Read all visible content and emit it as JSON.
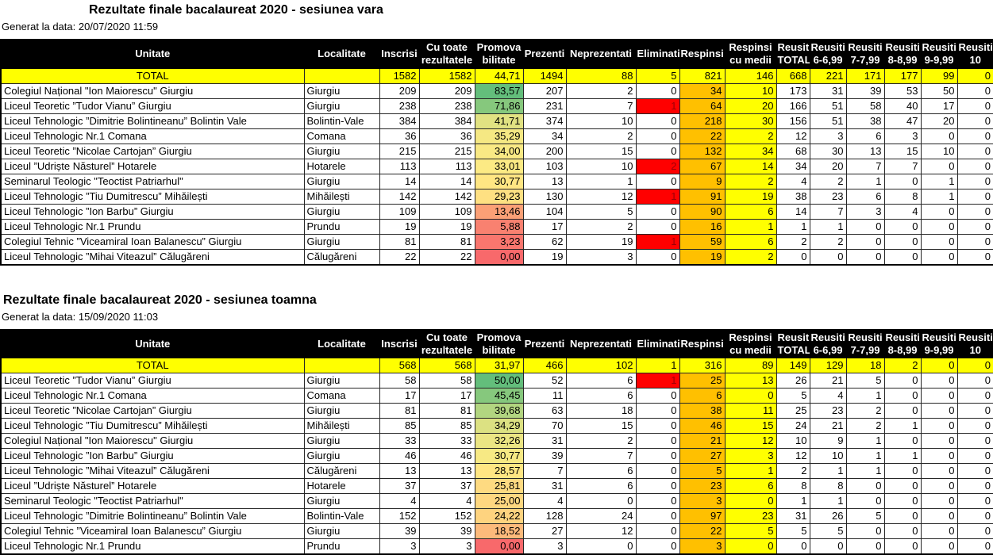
{
  "colors": {
    "header_bg": "#000000",
    "header_text": "#ffffff",
    "total_row_bg": "#ffff00",
    "respinsi_bg": "#ffc000",
    "respinsi_cu_medii_bg": "#ffff00",
    "eliminati_bg": "#ff0000",
    "eliminati_text": "#9c0006",
    "scale_min": "#f8696b",
    "scale_mid": "#ffeb84",
    "scale_max": "#63be7b"
  },
  "columns": [
    {
      "key": "unitate",
      "label": "Unitate"
    },
    {
      "key": "localitate",
      "label": "Localitate"
    },
    {
      "key": "inscrisi",
      "label": "Inscrisi"
    },
    {
      "key": "cu_toate",
      "label": "Cu toate\nrezultatele"
    },
    {
      "key": "promo",
      "label": "Promova\nbilitate"
    },
    {
      "key": "prezenti",
      "label": "Prezenti"
    },
    {
      "key": "neprez",
      "label": "Neprezentati"
    },
    {
      "key": "elim",
      "label": "Eliminati"
    },
    {
      "key": "respinsi",
      "label": "Respinsi"
    },
    {
      "key": "resp_medii",
      "label": "Respinsi\ncu medii"
    },
    {
      "key": "r_total",
      "label": "Reusiti\nTOTAL"
    },
    {
      "key": "r6",
      "label": "Reusiti\n6-6,99"
    },
    {
      "key": "r7",
      "label": "Reusiti\n7-7,99"
    },
    {
      "key": "r8",
      "label": "Reusiti\n8-8,99"
    },
    {
      "key": "r9",
      "label": "Reusiti\n9-9,99"
    },
    {
      "key": "r10",
      "label": "Reusiti\n10"
    }
  ],
  "reports": [
    {
      "title": "Rezultate finale bacalaureat 2020 - sesiunea vara",
      "generated": "Generat la data: 20/07/2020 11:59",
      "total": {
        "unitate": "TOTAL",
        "localitate": "",
        "inscrisi": "1582",
        "cu_toate": "1582",
        "promo": "44,71",
        "prezenti": "1494",
        "neprez": "88",
        "elim": "5",
        "respinsi": "821",
        "resp_medii": "146",
        "r_total": "668",
        "r6": "221",
        "r7": "171",
        "r8": "177",
        "r9": "99",
        "r10": "0"
      },
      "rows": [
        {
          "unitate": "Colegiul Național \"Ion Maiorescu\" Giurgiu",
          "localitate": "Giurgiu",
          "inscrisi": "209",
          "cu_toate": "209",
          "promo": "83,57",
          "prezenti": "207",
          "neprez": "2",
          "elim": "0",
          "respinsi": "34",
          "resp_medii": "10",
          "r_total": "173",
          "r6": "31",
          "r7": "39",
          "r8": "53",
          "r9": "50",
          "r10": "0"
        },
        {
          "unitate": "Liceul Teoretic ”Tudor Vianu” Giurgiu",
          "localitate": "Giurgiu",
          "inscrisi": "238",
          "cu_toate": "238",
          "promo": "71,86",
          "prezenti": "231",
          "neprez": "7",
          "elim": "1",
          "respinsi": "64",
          "resp_medii": "20",
          "r_total": "166",
          "r6": "51",
          "r7": "58",
          "r8": "40",
          "r9": "17",
          "r10": "0"
        },
        {
          "unitate": "Liceul Tehnologic ”Dimitrie Bolintineanu” Bolintin Vale",
          "localitate": "Bolintin-Vale",
          "inscrisi": "384",
          "cu_toate": "384",
          "promo": "41,71",
          "prezenti": "374",
          "neprez": "10",
          "elim": "0",
          "respinsi": "218",
          "resp_medii": "30",
          "r_total": "156",
          "r6": "51",
          "r7": "38",
          "r8": "47",
          "r9": "20",
          "r10": "0"
        },
        {
          "unitate": "Liceul Tehnologic Nr.1 Comana",
          "localitate": "Comana",
          "inscrisi": "36",
          "cu_toate": "36",
          "promo": "35,29",
          "prezenti": "34",
          "neprez": "2",
          "elim": "0",
          "respinsi": "22",
          "resp_medii": "2",
          "r_total": "12",
          "r6": "3",
          "r7": "6",
          "r8": "3",
          "r9": "0",
          "r10": "0"
        },
        {
          "unitate": "Liceul Teoretic ”Nicolae Cartojan” Giurgiu",
          "localitate": "Giurgiu",
          "inscrisi": "215",
          "cu_toate": "215",
          "promo": "34,00",
          "prezenti": "200",
          "neprez": "15",
          "elim": "0",
          "respinsi": "132",
          "resp_medii": "34",
          "r_total": "68",
          "r6": "30",
          "r7": "13",
          "r8": "15",
          "r9": "10",
          "r10": "0"
        },
        {
          "unitate": "Liceul ”Udriște Năsturel” Hotarele",
          "localitate": "Hotarele",
          "inscrisi": "113",
          "cu_toate": "113",
          "promo": "33,01",
          "prezenti": "103",
          "neprez": "10",
          "elim": "2",
          "respinsi": "67",
          "resp_medii": "14",
          "r_total": "34",
          "r6": "20",
          "r7": "7",
          "r8": "7",
          "r9": "0",
          "r10": "0"
        },
        {
          "unitate": "Seminarul Teologic \"Teoctist Patriarhul\"",
          "localitate": "Giurgiu",
          "inscrisi": "14",
          "cu_toate": "14",
          "promo": "30,77",
          "prezenti": "13",
          "neprez": "1",
          "elim": "0",
          "respinsi": "9",
          "resp_medii": "2",
          "r_total": "4",
          "r6": "2",
          "r7": "1",
          "r8": "0",
          "r9": "1",
          "r10": "0"
        },
        {
          "unitate": "Liceul Tehnologic ”Tiu Dumitrescu” Mihăilești",
          "localitate": "Mihăilești",
          "inscrisi": "142",
          "cu_toate": "142",
          "promo": "29,23",
          "prezenti": "130",
          "neprez": "12",
          "elim": "1",
          "respinsi": "91",
          "resp_medii": "19",
          "r_total": "38",
          "r6": "23",
          "r7": "6",
          "r8": "8",
          "r9": "1",
          "r10": "0"
        },
        {
          "unitate": "Liceul Tehnologic ”Ion Barbu” Giurgiu",
          "localitate": "Giurgiu",
          "inscrisi": "109",
          "cu_toate": "109",
          "promo": "13,46",
          "prezenti": "104",
          "neprez": "5",
          "elim": "0",
          "respinsi": "90",
          "resp_medii": "6",
          "r_total": "14",
          "r6": "7",
          "r7": "3",
          "r8": "4",
          "r9": "0",
          "r10": "0"
        },
        {
          "unitate": "Liceul Tehnologic Nr.1 Prundu",
          "localitate": "Prundu",
          "inscrisi": "19",
          "cu_toate": "19",
          "promo": "5,88",
          "prezenti": "17",
          "neprez": "2",
          "elim": "0",
          "respinsi": "16",
          "resp_medii": "1",
          "r_total": "1",
          "r6": "1",
          "r7": "0",
          "r8": "0",
          "r9": "0",
          "r10": "0"
        },
        {
          "unitate": "Colegiul Tehnic ”Viceamiral Ioan Balanescu” Giurgiu",
          "localitate": "Giurgiu",
          "inscrisi": "81",
          "cu_toate": "81",
          "promo": "3,23",
          "prezenti": "62",
          "neprez": "19",
          "elim": "1",
          "respinsi": "59",
          "resp_medii": "6",
          "r_total": "2",
          "r6": "2",
          "r7": "0",
          "r8": "0",
          "r9": "0",
          "r10": "0"
        },
        {
          "unitate": "Liceul Tehnologic ”Mihai Viteazul” Călugăreni",
          "localitate": "Călugăreni",
          "inscrisi": "22",
          "cu_toate": "22",
          "promo": "0,00",
          "prezenti": "19",
          "neprez": "3",
          "elim": "0",
          "respinsi": "19",
          "resp_medii": "2",
          "r_total": "0",
          "r6": "0",
          "r7": "0",
          "r8": "0",
          "r9": "0",
          "r10": "0"
        }
      ]
    },
    {
      "title": "Rezultate finale bacalaureat 2020 - sesiunea toamna",
      "generated": "Generat la data: 15/09/2020 11:03",
      "total": {
        "unitate": "TOTAL",
        "localitate": "",
        "inscrisi": "568",
        "cu_toate": "568",
        "promo": "31,97",
        "prezenti": "466",
        "neprez": "102",
        "elim": "1",
        "respinsi": "316",
        "resp_medii": "89",
        "r_total": "149",
        "r6": "129",
        "r7": "18",
        "r8": "2",
        "r9": "0",
        "r10": "0"
      },
      "rows": [
        {
          "unitate": "Liceul Teoretic ”Tudor Vianu” Giurgiu",
          "localitate": "Giurgiu",
          "inscrisi": "58",
          "cu_toate": "58",
          "promo": "50,00",
          "prezenti": "52",
          "neprez": "6",
          "elim": "1",
          "respinsi": "25",
          "resp_medii": "13",
          "r_total": "26",
          "r6": "21",
          "r7": "5",
          "r8": "0",
          "r9": "0",
          "r10": "0"
        },
        {
          "unitate": "Liceul Tehnologic Nr.1 Comana",
          "localitate": "Comana",
          "inscrisi": "17",
          "cu_toate": "17",
          "promo": "45,45",
          "prezenti": "11",
          "neprez": "6",
          "elim": "0",
          "respinsi": "6",
          "resp_medii": "0",
          "r_total": "5",
          "r6": "4",
          "r7": "1",
          "r8": "0",
          "r9": "0",
          "r10": "0"
        },
        {
          "unitate": "Liceul Teoretic ”Nicolae Cartojan” Giurgiu",
          "localitate": "Giurgiu",
          "inscrisi": "81",
          "cu_toate": "81",
          "promo": "39,68",
          "prezenti": "63",
          "neprez": "18",
          "elim": "0",
          "respinsi": "38",
          "resp_medii": "11",
          "r_total": "25",
          "r6": "23",
          "r7": "2",
          "r8": "0",
          "r9": "0",
          "r10": "0"
        },
        {
          "unitate": "Liceul Tehnologic ”Tiu Dumitrescu” Mihăilești",
          "localitate": "Mihăilești",
          "inscrisi": "85",
          "cu_toate": "85",
          "promo": "34,29",
          "prezenti": "70",
          "neprez": "15",
          "elim": "0",
          "respinsi": "46",
          "resp_medii": "15",
          "r_total": "24",
          "r6": "21",
          "r7": "2",
          "r8": "1",
          "r9": "0",
          "r10": "0"
        },
        {
          "unitate": "Colegiul Național \"Ion Maiorescu\" Giurgiu",
          "localitate": "Giurgiu",
          "inscrisi": "33",
          "cu_toate": "33",
          "promo": "32,26",
          "prezenti": "31",
          "neprez": "2",
          "elim": "0",
          "respinsi": "21",
          "resp_medii": "12",
          "r_total": "10",
          "r6": "9",
          "r7": "1",
          "r8": "0",
          "r9": "0",
          "r10": "0"
        },
        {
          "unitate": "Liceul Tehnologic ”Ion Barbu” Giurgiu",
          "localitate": "Giurgiu",
          "inscrisi": "46",
          "cu_toate": "46",
          "promo": "30,77",
          "prezenti": "39",
          "neprez": "7",
          "elim": "0",
          "respinsi": "27",
          "resp_medii": "3",
          "r_total": "12",
          "r6": "10",
          "r7": "1",
          "r8": "1",
          "r9": "0",
          "r10": "0"
        },
        {
          "unitate": "Liceul Tehnologic ”Mihai Viteazul” Călugăreni",
          "localitate": "Călugăreni",
          "inscrisi": "13",
          "cu_toate": "13",
          "promo": "28,57",
          "prezenti": "7",
          "neprez": "6",
          "elim": "0",
          "respinsi": "5",
          "resp_medii": "1",
          "r_total": "2",
          "r6": "1",
          "r7": "1",
          "r8": "0",
          "r9": "0",
          "r10": "0"
        },
        {
          "unitate": "Liceul ”Udriște Năsturel” Hotarele",
          "localitate": "Hotarele",
          "inscrisi": "37",
          "cu_toate": "37",
          "promo": "25,81",
          "prezenti": "31",
          "neprez": "6",
          "elim": "0",
          "respinsi": "23",
          "resp_medii": "6",
          "r_total": "8",
          "r6": "8",
          "r7": "0",
          "r8": "0",
          "r9": "0",
          "r10": "0"
        },
        {
          "unitate": "Seminarul Teologic \"Teoctist Patriarhul\"",
          "localitate": "Giurgiu",
          "inscrisi": "4",
          "cu_toate": "4",
          "promo": "25,00",
          "prezenti": "4",
          "neprez": "0",
          "elim": "0",
          "respinsi": "3",
          "resp_medii": "0",
          "r_total": "1",
          "r6": "1",
          "r7": "0",
          "r8": "0",
          "r9": "0",
          "r10": "0"
        },
        {
          "unitate": "Liceul Tehnologic ”Dimitrie Bolintineanu” Bolintin Vale",
          "localitate": "Bolintin-Vale",
          "inscrisi": "152",
          "cu_toate": "152",
          "promo": "24,22",
          "prezenti": "128",
          "neprez": "24",
          "elim": "0",
          "respinsi": "97",
          "resp_medii": "23",
          "r_total": "31",
          "r6": "26",
          "r7": "5",
          "r8": "0",
          "r9": "0",
          "r10": "0"
        },
        {
          "unitate": "Colegiul Tehnic ”Viceamiral Ioan Balanescu” Giurgiu",
          "localitate": "Giurgiu",
          "inscrisi": "39",
          "cu_toate": "39",
          "promo": "18,52",
          "prezenti": "27",
          "neprez": "12",
          "elim": "0",
          "respinsi": "22",
          "resp_medii": "5",
          "r_total": "5",
          "r6": "5",
          "r7": "0",
          "r8": "0",
          "r9": "0",
          "r10": "0"
        },
        {
          "unitate": "Liceul Tehnologic Nr.1 Prundu",
          "localitate": "Prundu",
          "inscrisi": "3",
          "cu_toate": "3",
          "promo": "0,00",
          "prezenti": "3",
          "neprez": "0",
          "elim": "0",
          "respinsi": "3",
          "resp_medii": "0",
          "r_total": "0",
          "r6": "0",
          "r7": "0",
          "r8": "0",
          "r9": "0",
          "r10": "0"
        }
      ]
    }
  ]
}
